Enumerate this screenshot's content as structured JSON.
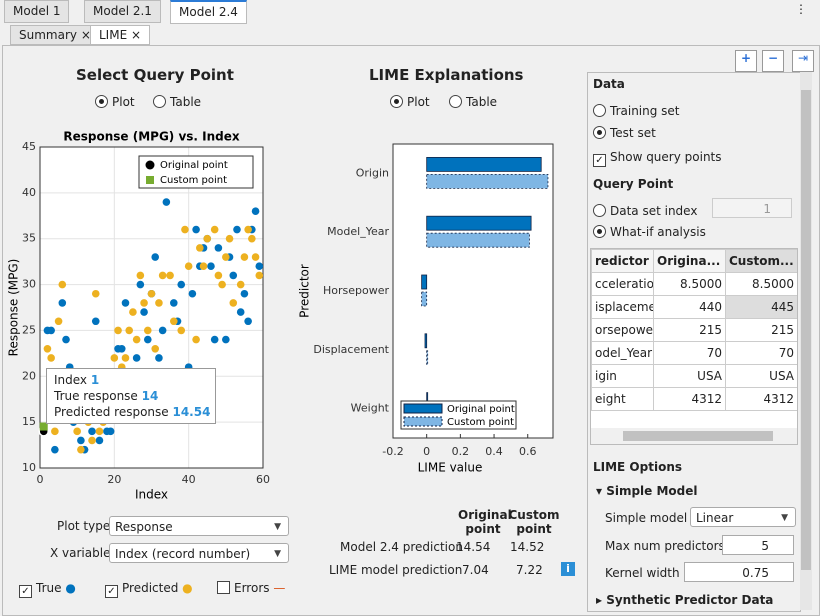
{
  "tabs": [
    "Model 1",
    "Model 2.1",
    "Model 2.4"
  ],
  "subtabs": [
    "Summary",
    "LIME"
  ],
  "query_panel": {
    "title": "Select Query Point",
    "options": [
      "Plot",
      "Table"
    ]
  },
  "lime_panel": {
    "title": "LIME Explanations",
    "options": [
      "Plot",
      "Table"
    ]
  },
  "tooltip": {
    "index_label": "Index",
    "index": 1,
    "true_label": "True response",
    "true": 14,
    "pred_label": "Predicted response",
    "pred": 14.54
  },
  "controls": {
    "plot_type_label": "Plot type",
    "plot_type": "Response",
    "x_variable_label": "X variable",
    "x_variable": "Index (record number)",
    "errors_label": "Errors"
  },
  "predictions": {
    "headers": [
      "Original point",
      "Custom point"
    ],
    "rows": [
      {
        "label": "Model 2.4 prediction",
        "values": [
          14.54,
          14.52
        ]
      },
      {
        "label": "LIME model prediction",
        "values": [
          7.04,
          7.22
        ]
      }
    ]
  },
  "data_panel": {
    "title": "Data",
    "sets": [
      "Training set",
      "Test set"
    ],
    "show_query": "Show query points",
    "query_title": "Query Point",
    "index_label": "Data set index",
    "index_value": 1,
    "whatif": "What-if analysis",
    "table": {
      "headers": [
        "redictor",
        "Origina...",
        "Custom..."
      ],
      "rows": [
        [
          "cceleration",
          "8.5000",
          "8.5000"
        ],
        [
          "isplacement",
          "440",
          "445"
        ],
        [
          "orsepower",
          "215",
          "215"
        ],
        [
          "odel_Year",
          "70",
          "70"
        ],
        [
          "igin",
          "USA",
          "USA"
        ],
        [
          "eight",
          "4312",
          "4312"
        ]
      ]
    },
    "lime_title": "LIME Options",
    "simple_title": "Simple Model",
    "simple_label": "Simple model",
    "simple_value": "Linear",
    "max_label": "Max num predictors",
    "max_value": 5,
    "kernel_label": "Kernel width",
    "kernel_value": 0.75,
    "synthetic": "Synthetic Predictor Data"
  },
  "chart_data": [
    {
      "type": "scatter",
      "title": "Response (MPG) vs. Index",
      "xlabel": "Index",
      "ylabel": "Response (MPG)",
      "xlim": [
        0,
        60
      ],
      "ylim": [
        10,
        45
      ],
      "xticks": [
        0,
        20,
        40,
        60
      ],
      "yticks": [
        10,
        15,
        20,
        25,
        30,
        35,
        40,
        45
      ],
      "grid": true,
      "legend": "upper right",
      "series": [
        {
          "name": "True",
          "color": "#0072bd",
          "x": [
            2,
            3,
            4,
            6,
            7,
            8,
            9,
            10,
            11,
            12,
            13,
            14,
            15,
            16,
            17,
            18,
            19,
            20,
            21,
            22,
            23,
            24,
            25,
            26,
            27,
            28,
            29,
            30,
            31,
            32,
            33,
            34,
            35,
            36,
            37,
            38,
            40,
            41,
            42,
            43,
            44,
            45,
            46,
            47,
            48,
            50,
            51,
            52,
            53,
            54,
            55,
            56,
            57,
            58,
            59
          ],
          "values": [
            25,
            25,
            12,
            28,
            24,
            21,
            15,
            18,
            13,
            12,
            16,
            14,
            26,
            13,
            16,
            14,
            14,
            18,
            23,
            23,
            28,
            16,
            20,
            22,
            30,
            27,
            24,
            29,
            33,
            22,
            25,
            39,
            19,
            28,
            26,
            30,
            21,
            29,
            36,
            32,
            34,
            35,
            32,
            24,
            34,
            24,
            33,
            31,
            36,
            27,
            29,
            26,
            36,
            38,
            32
          ]
        },
        {
          "name": "Predicted",
          "color": "#edb120",
          "x": [
            2,
            3,
            4,
            5,
            6,
            8,
            9,
            10,
            11,
            12,
            13,
            14,
            15,
            16,
            17,
            18,
            20,
            21,
            22,
            23,
            24,
            25,
            26,
            27,
            28,
            29,
            30,
            31,
            32,
            33,
            35,
            36,
            38,
            39,
            40,
            42,
            43,
            44,
            45,
            47,
            48,
            49,
            50,
            51,
            52,
            54,
            55,
            56,
            57,
            58,
            59
          ],
          "values": [
            23,
            22,
            14,
            26,
            30,
            17,
            20,
            14,
            12,
            16,
            15,
            13,
            29,
            14,
            15,
            16,
            22,
            25,
            21,
            22,
            25,
            27,
            24,
            31,
            28,
            25,
            29,
            23,
            28,
            31,
            31,
            26,
            25,
            36,
            32,
            24,
            34,
            32,
            35,
            36,
            31,
            30,
            33,
            35,
            28,
            30,
            33,
            36,
            35,
            33,
            31
          ]
        },
        {
          "name": "Original point",
          "color": "#000000",
          "x": [
            1
          ],
          "values": [
            14
          ]
        },
        {
          "name": "Custom point",
          "color": "#77ac30",
          "x": [
            1
          ],
          "values": [
            14.52
          ]
        }
      ]
    },
    {
      "type": "bar",
      "orientation": "horizontal",
      "xlabel": "LIME value",
      "ylabel": "Predictor",
      "categories": [
        "Origin",
        "Model_Year",
        "Horsepower",
        "Displacement",
        "Weight"
      ],
      "xlim": [
        -0.2,
        0.75
      ],
      "xticks": [
        -0.2,
        0,
        0.2,
        0.4,
        0.6
      ],
      "legend": "lower left",
      "series": [
        {
          "name": "Original point",
          "color": "#0072bd",
          "values": [
            0.68,
            0.62,
            -0.03,
            -0.01,
            0.0
          ]
        },
        {
          "name": "Custom point",
          "color": "#7fb6e4",
          "values": [
            0.72,
            0.61,
            -0.03,
            0.0,
            0.0
          ]
        }
      ]
    }
  ]
}
